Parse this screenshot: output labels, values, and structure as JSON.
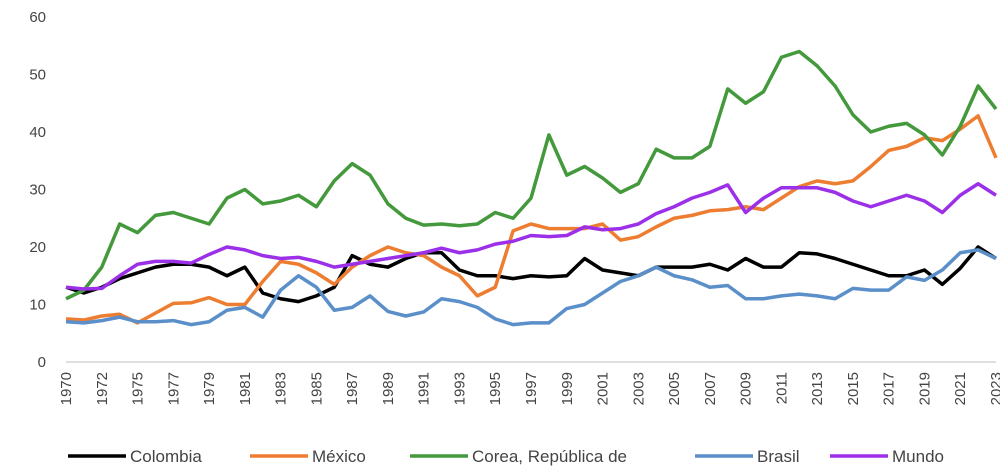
{
  "chart_data": {
    "type": "line",
    "categories": [
      "1970",
      null,
      "1972",
      null,
      "1975",
      null,
      "1977",
      null,
      "1979",
      null,
      "1981",
      null,
      "1983",
      null,
      "1985",
      null,
      "1987",
      null,
      "1989",
      null,
      "1991",
      null,
      "1993",
      null,
      "1995",
      null,
      "1997",
      null,
      "1999",
      null,
      "2001",
      null,
      "2003",
      null,
      "2005",
      null,
      "2007",
      null,
      "2009",
      null,
      "2011",
      null,
      "2013",
      null,
      "2015",
      null,
      "2017",
      null,
      "2019",
      null,
      "2021",
      null,
      "2023"
    ],
    "series": [
      {
        "name": "Colombia",
        "color": "#000000",
        "values": [
          13,
          12,
          13,
          14.5,
          15.5,
          16.5,
          17,
          17,
          16.5,
          15,
          16.5,
          12,
          11,
          10.5,
          11.5,
          13,
          18.5,
          17,
          16.5,
          18,
          19,
          19,
          16,
          15,
          15,
          14.5,
          15,
          14.8,
          15,
          18,
          16,
          15.5,
          15,
          16.5,
          16.5,
          16.5,
          17,
          16,
          18,
          16.5,
          16.5,
          19,
          18.8,
          18,
          17,
          16,
          15,
          15,
          16,
          13.5,
          16.3,
          20,
          18
        ]
      },
      {
        "name": "México",
        "color": "#ed7d31",
        "values": [
          7.5,
          7.3,
          8,
          8.3,
          6.8,
          8.5,
          10.2,
          10.3,
          11.2,
          10,
          10,
          14,
          17.5,
          17,
          15.5,
          13.5,
          16.5,
          18.5,
          20,
          19,
          18.5,
          16.5,
          15,
          11.5,
          13,
          22.8,
          24,
          23.2,
          23.2,
          23.2,
          24,
          21.2,
          21.8,
          23.5,
          25,
          25.5,
          26.3,
          26.5,
          27,
          26.5,
          28.5,
          30.5,
          31.5,
          31,
          31.5,
          34,
          36.8,
          37.5,
          39,
          38.5,
          40.5,
          42.8,
          35.5
        ]
      },
      {
        "name": "Corea, República de",
        "color": "#43993b",
        "values": [
          11,
          12.5,
          16.5,
          24,
          22.5,
          25.5,
          26,
          25,
          24,
          28.5,
          30,
          27.5,
          28,
          29,
          27,
          31.5,
          34.5,
          32.5,
          27.5,
          25,
          23.8,
          24,
          23.7,
          24,
          26,
          25,
          28.5,
          39.5,
          32.5,
          34,
          32,
          29.5,
          31,
          37,
          35.5,
          35.5,
          37.5,
          47.5,
          45,
          47,
          53,
          54,
          51.5,
          48,
          43,
          40,
          41,
          41.5,
          39.5,
          36,
          41,
          48,
          44
        ]
      },
      {
        "name": "Brasil",
        "color": "#5b8fc9",
        "values": [
          7,
          6.8,
          7.2,
          7.8,
          7,
          7,
          7.2,
          6.5,
          7,
          9,
          9.5,
          7.8,
          12.5,
          15,
          13,
          9,
          9.5,
          11.5,
          8.8,
          8,
          8.7,
          11,
          10.5,
          9.5,
          7.5,
          6.5,
          6.8,
          6.8,
          9.3,
          10,
          12,
          14,
          15,
          16.5,
          15,
          14.3,
          13,
          13.3,
          11,
          11,
          11.5,
          11.8,
          11.5,
          11,
          12.8,
          12.5,
          12.5,
          14.8,
          14.2,
          16,
          19,
          19.5,
          18
        ]
      },
      {
        "name": "Mundo",
        "color": "#9b30e8",
        "values": [
          13,
          12.7,
          12.8,
          15,
          17,
          17.5,
          17.5,
          17.2,
          18.7,
          20,
          19.5,
          18.5,
          18,
          18.2,
          17.5,
          16.5,
          17,
          17.5,
          18,
          18.5,
          19,
          19.8,
          19,
          19.5,
          20.5,
          21,
          22,
          21.8,
          22,
          23.5,
          23,
          23.2,
          24,
          25.8,
          27,
          28.5,
          29.5,
          30.8,
          26,
          28.5,
          30.3,
          30.3,
          30.3,
          29.5,
          28,
          27,
          28,
          29,
          28,
          26,
          29,
          31,
          29
        ]
      }
    ],
    "ylim": [
      0,
      60
    ],
    "yticks": [
      0,
      10,
      20,
      30,
      40,
      50,
      60
    ],
    "grid": false,
    "legend": "bottom"
  }
}
